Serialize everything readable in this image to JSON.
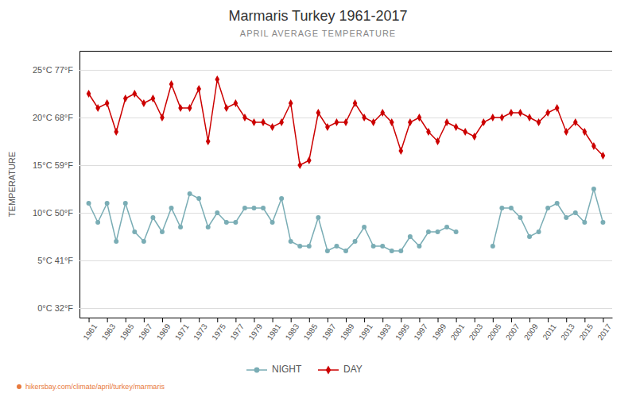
{
  "chart_data": {
    "type": "line",
    "title": "Marmaris Turkey 1961-2017",
    "subtitle": "APRIL AVERAGE TEMPERATURE",
    "ylabel": "TEMPERATURE",
    "footer": "hikersbay.com/climate/april/turkey/marmaris",
    "x": [
      1961,
      1962,
      1963,
      1964,
      1965,
      1966,
      1967,
      1968,
      1969,
      1970,
      1971,
      1972,
      1973,
      1974,
      1975,
      1976,
      1977,
      1978,
      1979,
      1980,
      1981,
      1982,
      1983,
      1984,
      1985,
      1986,
      1987,
      1988,
      1989,
      1990,
      1991,
      1992,
      1993,
      1994,
      1995,
      1996,
      1997,
      1998,
      1999,
      2000,
      2001,
      2002,
      2003,
      2004,
      2005,
      2006,
      2007,
      2008,
      2009,
      2010,
      2011,
      2012,
      2013,
      2014,
      2015,
      2016,
      2017
    ],
    "series": [
      {
        "name": "NIGHT",
        "color": "#7aadb5",
        "marker": "circle",
        "values": [
          11.0,
          9.0,
          11.0,
          7.0,
          11.0,
          8.0,
          7.0,
          9.5,
          8.0,
          10.5,
          8.5,
          12.0,
          11.5,
          8.5,
          10.0,
          9.0,
          9.0,
          10.5,
          10.5,
          10.5,
          9.0,
          11.5,
          7.0,
          6.5,
          6.5,
          9.5,
          6.0,
          6.5,
          6.0,
          7.0,
          8.5,
          6.5,
          6.5,
          6.0,
          6.0,
          7.5,
          6.5,
          8.0,
          8.0,
          8.5,
          8.0,
          null,
          null,
          null,
          6.5,
          10.5,
          10.5,
          9.5,
          7.5,
          8.0,
          10.5,
          11.0,
          9.5,
          10.0,
          9.0,
          12.5,
          9.0
        ]
      },
      {
        "name": "DAY",
        "color": "#cc0000",
        "marker": "diamond",
        "values": [
          22.5,
          21.0,
          21.5,
          18.5,
          22.0,
          22.5,
          21.5,
          22.0,
          20.0,
          23.5,
          21.0,
          21.0,
          23.0,
          17.5,
          24.0,
          21.0,
          21.5,
          20.0,
          19.5,
          19.5,
          19.0,
          19.5,
          21.5,
          15.0,
          15.5,
          20.5,
          19.0,
          19.5,
          19.5,
          21.5,
          20.0,
          19.5,
          20.5,
          19.5,
          16.5,
          19.5,
          20.0,
          18.5,
          17.5,
          19.5,
          19.0,
          18.5,
          18.0,
          19.5,
          20.0,
          20.0,
          20.5,
          20.5,
          20.0,
          19.5,
          20.5,
          21.0,
          18.5,
          19.5,
          18.5,
          17.0,
          16.0
        ]
      }
    ],
    "xlim": [
      1960,
      2018
    ],
    "xticks": [
      1961,
      1963,
      1965,
      1967,
      1969,
      1971,
      1973,
      1975,
      1977,
      1979,
      1981,
      1983,
      1985,
      1987,
      1989,
      1991,
      1993,
      1995,
      1997,
      1999,
      2001,
      2003,
      2005,
      2007,
      2009,
      2011,
      2013,
      2015,
      2017
    ],
    "ylim": [
      -1,
      27
    ],
    "yticks": [
      {
        "value": 0,
        "label": "0°C 32°F"
      },
      {
        "value": 5,
        "label": "5°C 41°F"
      },
      {
        "value": 10,
        "label": "10°C 50°F"
      },
      {
        "value": 15,
        "label": "15°C 59°F"
      },
      {
        "value": 20,
        "label": "20°C 68°F"
      },
      {
        "value": 25,
        "label": "25°C 77°F"
      }
    ],
    "grid": true,
    "legend": "bottom"
  }
}
